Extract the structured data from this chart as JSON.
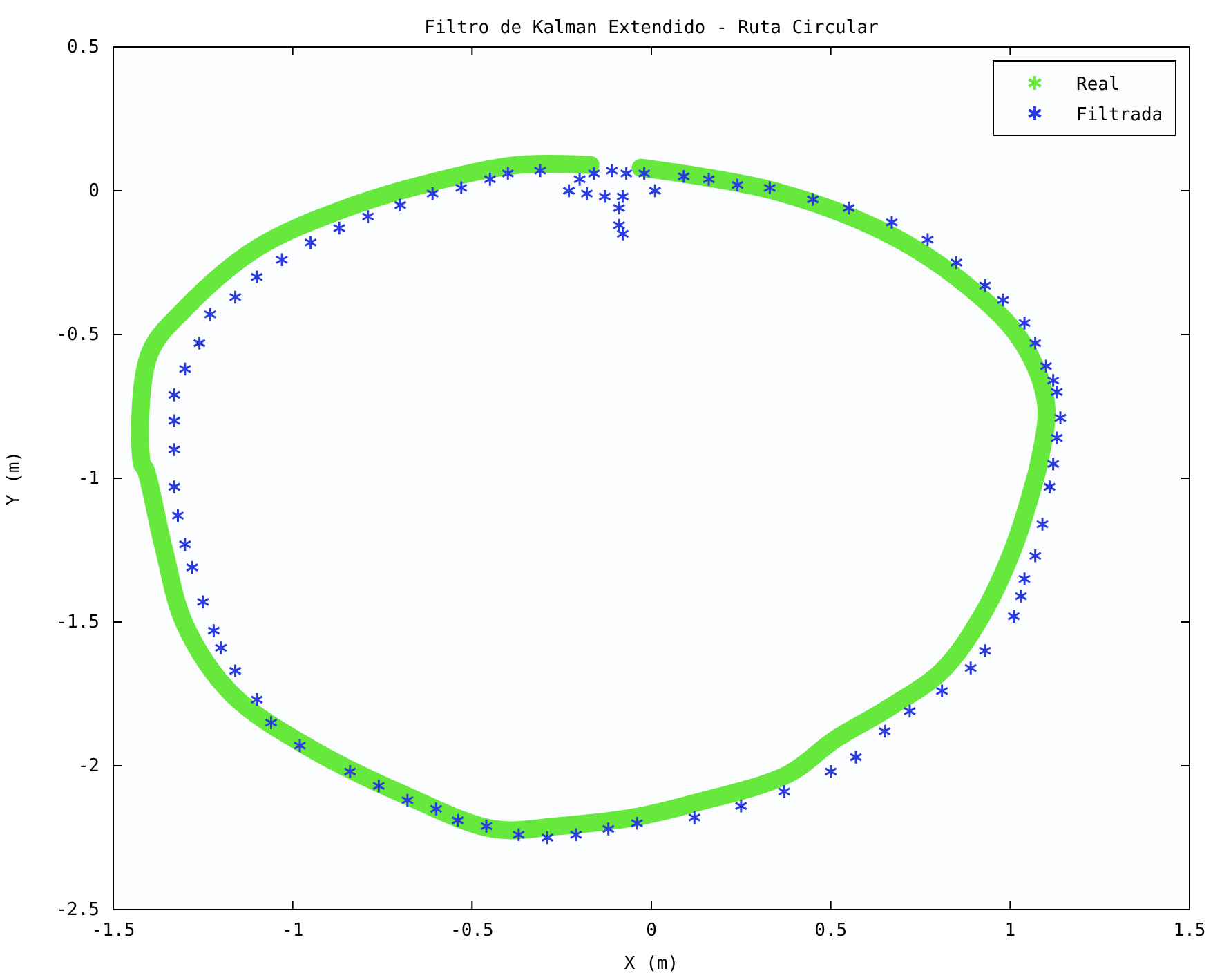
{
  "chart_data": {
    "type": "scatter",
    "title": "Filtro de Kalman Extendido - Ruta Circular",
    "xlabel": "X (m)",
    "ylabel": "Y (m)",
    "xlim": [
      -1.5,
      1.5
    ],
    "xticks": [
      -1.5,
      -1,
      -0.5,
      0,
      0.5,
      1,
      1.5
    ],
    "ylim": [
      -2.5,
      0.5
    ],
    "yticks": [
      -2.5,
      -2,
      -1.5,
      -1,
      -0.5,
      0,
      0.5
    ],
    "grid": false,
    "legend": "top right",
    "marker": "cross",
    "series": [
      {
        "name": "Real",
        "type": "line",
        "color": "#66e83c",
        "x": [
          -0.03,
          0.34,
          0.66,
          0.88,
          1.03,
          1.1,
          1.08,
          1.07,
          1.01,
          0.92,
          0.81,
          0.66,
          0.51,
          0.38,
          0.12,
          -0.05,
          -0.26,
          -0.44,
          -0.69,
          -0.95,
          -1.17,
          -1.3,
          -1.36,
          -1.41,
          -1.42,
          -1.4,
          -1.3,
          -1.1,
          -0.85,
          -0.61,
          -0.37,
          -0.17
        ],
        "values": [
          0.08,
          0.0,
          -0.15,
          -0.33,
          -0.52,
          -0.74,
          -0.95,
          -1.0,
          -1.24,
          -1.48,
          -1.67,
          -1.8,
          -1.91,
          -2.03,
          -2.13,
          -2.18,
          -2.21,
          -2.22,
          -2.1,
          -1.94,
          -1.75,
          -1.51,
          -1.24,
          -0.97,
          -0.95,
          -0.57,
          -0.41,
          -0.2,
          -0.06,
          0.03,
          0.09,
          0.09
        ]
      },
      {
        "name": "Filtrada",
        "color": "#2a3ce0",
        "x": [
          -0.31,
          -0.4,
          -0.45,
          -0.53,
          -0.61,
          -0.7,
          -0.79,
          -0.87,
          -0.95,
          -1.03,
          -1.1,
          -1.16,
          -1.23,
          -1.26,
          -1.3,
          -1.33,
          -1.33,
          -1.33,
          -1.33,
          -1.32,
          -1.3,
          -1.28,
          -1.25,
          -1.22,
          -1.2,
          -1.16,
          -1.1,
          -1.06,
          -0.98,
          -0.84,
          -0.76,
          -0.68,
          -0.6,
          -0.54,
          -0.46,
          -0.37,
          -0.29,
          -0.21,
          -0.12,
          -0.04,
          0.12,
          0.25,
          0.37,
          0.5,
          0.57,
          0.65,
          0.72,
          0.81,
          0.89,
          0.93,
          1.01,
          1.03,
          1.04,
          1.07,
          1.09,
          1.11,
          1.12,
          1.13,
          1.14,
          1.13,
          1.12,
          1.1,
          1.07,
          1.04,
          0.98,
          0.93,
          0.85,
          0.77,
          0.67,
          0.55,
          0.45,
          0.33,
          0.24,
          0.16,
          0.09,
          0.01,
          -0.02,
          -0.07,
          -0.11,
          -0.16,
          -0.2,
          -0.23,
          -0.18,
          -0.13,
          -0.08,
          -0.09,
          -0.09,
          -0.08
        ],
        "values": [
          0.07,
          0.06,
          0.04,
          0.01,
          -0.01,
          -0.05,
          -0.09,
          -0.13,
          -0.18,
          -0.24,
          -0.3,
          -0.37,
          -0.43,
          -0.53,
          -0.62,
          -0.71,
          -0.8,
          -0.9,
          -1.03,
          -1.13,
          -1.23,
          -1.31,
          -1.43,
          -1.53,
          -1.59,
          -1.67,
          -1.77,
          -1.85,
          -1.93,
          -2.02,
          -2.07,
          -2.12,
          -2.15,
          -2.19,
          -2.21,
          -2.24,
          -2.25,
          -2.24,
          -2.22,
          -2.2,
          -2.18,
          -2.14,
          -2.09,
          -2.02,
          -1.97,
          -1.88,
          -1.81,
          -1.74,
          -1.66,
          -1.6,
          -1.48,
          -1.41,
          -1.35,
          -1.27,
          -1.16,
          -1.03,
          -0.95,
          -0.86,
          -0.79,
          -0.7,
          -0.66,
          -0.61,
          -0.53,
          -0.46,
          -0.38,
          -0.33,
          -0.25,
          -0.17,
          -0.11,
          -0.06,
          -0.03,
          0.01,
          0.02,
          0.04,
          0.05,
          0.0,
          0.06,
          0.06,
          0.07,
          0.06,
          0.04,
          0.0,
          -0.01,
          -0.02,
          -0.02,
          -0.06,
          -0.12,
          -0.15
        ]
      }
    ]
  }
}
